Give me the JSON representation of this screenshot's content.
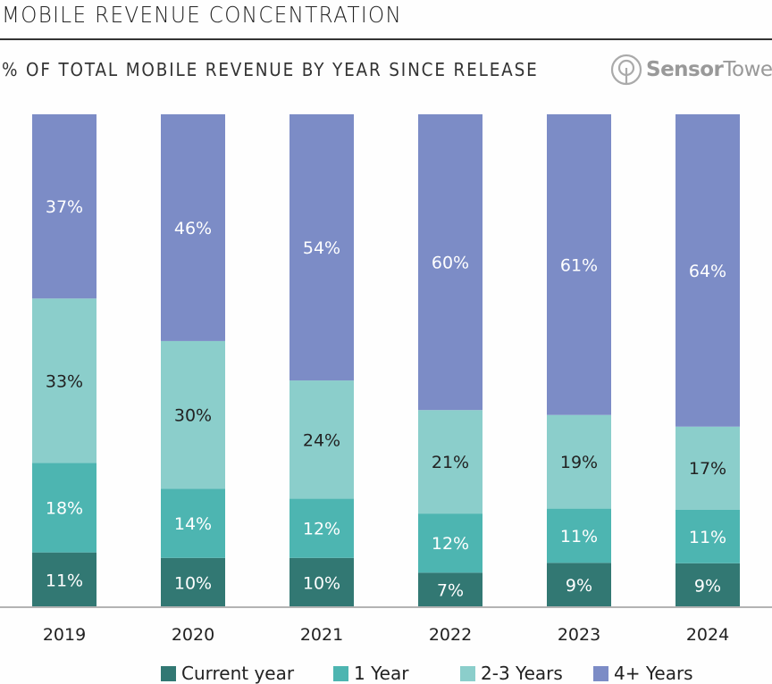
{
  "header": {
    "title": "MOBILE REVENUE CONCENTRATION",
    "subtitle": "% OF TOTAL MOBILE REVENUE BY YEAR SINCE RELEASE",
    "logo_bold": "Sensor",
    "logo_normal": "Tower"
  },
  "chart_data": {
    "type": "bar",
    "stacked": true,
    "title": "MOBILE REVENUE CONCENTRATION",
    "subtitle": "% OF TOTAL MOBILE REVENUE BY YEAR SINCE RELEASE",
    "xlabel": "",
    "ylabel": "",
    "ylim": [
      0,
      100
    ],
    "grid": false,
    "legend_position": "bottom",
    "categories": [
      "2019",
      "2020",
      "2021",
      "2022",
      "2023",
      "2024"
    ],
    "series": [
      {
        "name": "Current year",
        "color": "#327873",
        "label_color": "#ffffff",
        "values": [
          11,
          10,
          10,
          7,
          9,
          9
        ]
      },
      {
        "name": "1 Year",
        "color": "#4db5b1",
        "label_color": "#ffffff",
        "values": [
          18,
          14,
          12,
          12,
          11,
          11
        ]
      },
      {
        "name": "2-3 Years",
        "color": "#8bcecb",
        "label_color": "#222222",
        "values": [
          33,
          30,
          24,
          21,
          19,
          17
        ]
      },
      {
        "name": "4+ Years",
        "color": "#7c8cc6",
        "label_color": "#ffffff",
        "values": [
          37,
          46,
          54,
          60,
          61,
          64
        ]
      }
    ],
    "value_format": "{v}%"
  }
}
